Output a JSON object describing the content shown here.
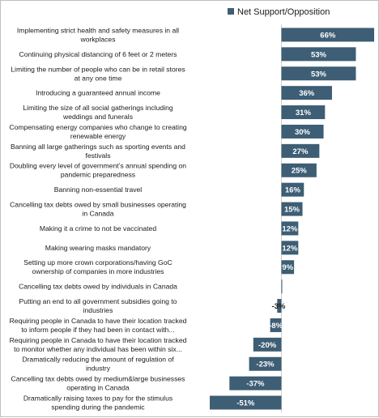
{
  "colors": {
    "bar": "#3d5e74",
    "axis": "#d0d0d0"
  },
  "chart_data": {
    "type": "bar",
    "orientation": "horizontal",
    "title": "",
    "xlabel": "",
    "ylabel": "",
    "legend": {
      "position": "top-right",
      "entries": [
        "Net Support/Opposition"
      ]
    },
    "xlim": [
      -55,
      70
    ],
    "grid": false,
    "series": [
      {
        "name": "Net Support/Opposition"
      }
    ],
    "categories": [
      [
        "Implementing strict health and safety measures in all",
        "workplaces"
      ],
      [
        "Continuing physical distancing of 6 feet or 2 meters"
      ],
      [
        "Limiting the number of people who can be in retail stores",
        "at any one time"
      ],
      [
        "Introducing a guaranteed annual income"
      ],
      [
        "Limiting the size of all social gatherings including",
        "weddings and funerals"
      ],
      [
        "Compensating energy companies who change to creating",
        "renewable energy"
      ],
      [
        "Banning all large gatherings such as sporting events and",
        "festivals"
      ],
      [
        "Doubling  every level of government’s  annual spending on",
        "pandemic preparedness"
      ],
      [
        "Banning non-essential travel"
      ],
      [
        "Cancelling tax debts owed by small businesses operating",
        "in Canada"
      ],
      [
        "Making it a crime to not be vaccinated"
      ],
      [
        "Making wearing masks mandatory"
      ],
      [
        "Setting up more crown corporations/having GoC",
        "ownership of companies in more industries"
      ],
      [
        "Cancelling tax debts owed by individuals in Canada"
      ],
      [
        "Putting an end to all government subsidies going to",
        "industries"
      ],
      [
        "Requiring people in Canada to have their location tracked",
        "to inform people if they had been in contact with..."
      ],
      [
        "Requiring people in Canada to have their location tracked",
        "to monitor whether any individual has been within six..."
      ],
      [
        "Dramatically reducing the amount of regulation of",
        "industry"
      ],
      [
        "Cancelling tax debts owed by medium&large businesses",
        "operating in Canada"
      ],
      [
        "Dramatically raising taxes to pay for the stimulus",
        "spending during the pandemic"
      ]
    ],
    "values": [
      66,
      53,
      53,
      36,
      31,
      30,
      27,
      25,
      16,
      15,
      12,
      12,
      9,
      0,
      -3,
      -8,
      -20,
      -23,
      -37,
      -51
    ],
    "value_labels": [
      "66%",
      "53%",
      "53%",
      "36%",
      "31%",
      "30%",
      "27%",
      "25%",
      "16%",
      "15%",
      "12%",
      "12%",
      "9%",
      "",
      "-3%",
      "-8%",
      "-20%",
      "-23%",
      "-37%",
      "-51%"
    ]
  }
}
